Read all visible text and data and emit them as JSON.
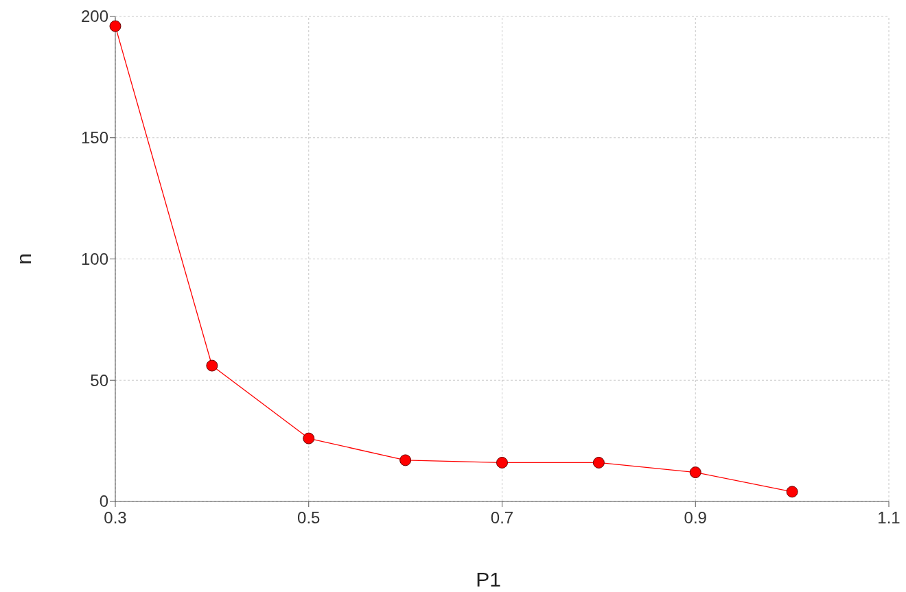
{
  "chart_data": {
    "type": "line",
    "xlabel": "P1",
    "ylabel": "n",
    "x": [
      0.3,
      0.4,
      0.5,
      0.6,
      0.7,
      0.8,
      0.9,
      1.0
    ],
    "series": [
      {
        "color": "#ff0000",
        "values": [
          196,
          56,
          26,
          17,
          16,
          16,
          12,
          4
        ]
      }
    ],
    "xlim": [
      0.3,
      1.1
    ],
    "xticks": [
      0.3,
      0.5,
      0.7,
      0.9,
      1.1
    ],
    "ylim": [
      0,
      200
    ],
    "yticks": [
      0,
      50,
      100,
      150,
      200
    ],
    "grid": true,
    "marker": "circle",
    "line_style": "solid"
  }
}
